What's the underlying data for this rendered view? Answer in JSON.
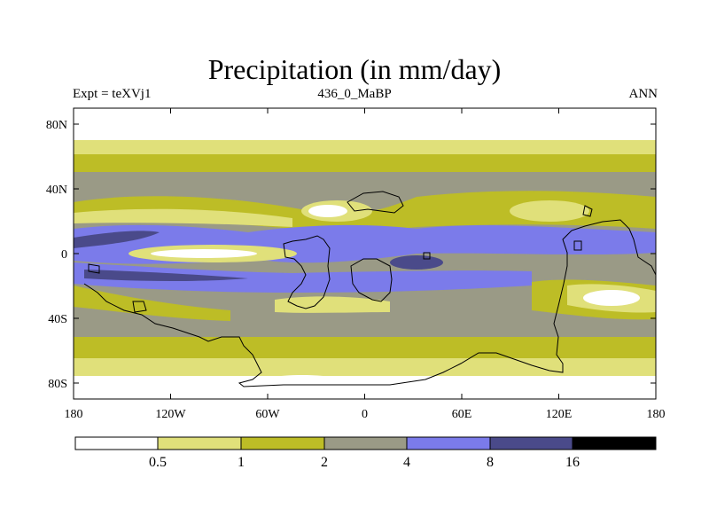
{
  "title": "Precipitation (in mm/day)",
  "left_label": "Expt = teXVj1",
  "center_label": "436_0_MaBP",
  "right_label": "ANN",
  "lat_ticks": [
    "80N",
    "40N",
    "0",
    "40S",
    "80S"
  ],
  "lon_ticks": [
    "180",
    "120W",
    "60W",
    "0",
    "60E",
    "120E",
    "180"
  ],
  "colorbar": {
    "labels": [
      "0.5",
      "1",
      "2",
      "4",
      "8",
      "16"
    ],
    "colors": [
      "#ffffff",
      "#e0e07a",
      "#bdbd26",
      "#9a9a86",
      "#7b7bea",
      "#4a4a8a",
      "#000000"
    ]
  },
  "colors": {
    "c0": "#ffffff",
    "c1": "#e0e07a",
    "c2": "#bdbd26",
    "c3": "#9a9a86",
    "c4": "#7b7bea",
    "c5": "#4a4a8a"
  }
}
